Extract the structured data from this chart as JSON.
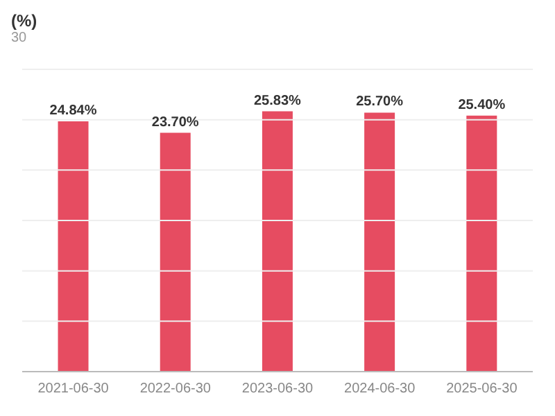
{
  "chart_data": {
    "type": "bar",
    "title": "(%)",
    "subtitle": "30",
    "categories": [
      "2021-06-30",
      "2022-06-30",
      "2023-06-30",
      "2024-06-30",
      "2025-06-30"
    ],
    "values": [
      24.84,
      23.7,
      25.83,
      25.7,
      25.4
    ],
    "value_labels": [
      "24.84%",
      "23.70%",
      "25.83%",
      "25.70%",
      "25.40%"
    ],
    "color": "#e64c61",
    "ylim": [
      0,
      30
    ],
    "yticks": [
      {
        "value": 0,
        "label": null
      },
      {
        "value": 5,
        "label": null
      },
      {
        "value": 10,
        "label": null
      },
      {
        "value": 15,
        "label": null
      },
      {
        "value": 20,
        "label": null
      },
      {
        "value": 25,
        "label": null
      },
      {
        "value": 30,
        "label": null
      }
    ],
    "tick_labels": "x",
    "grid": "y"
  }
}
